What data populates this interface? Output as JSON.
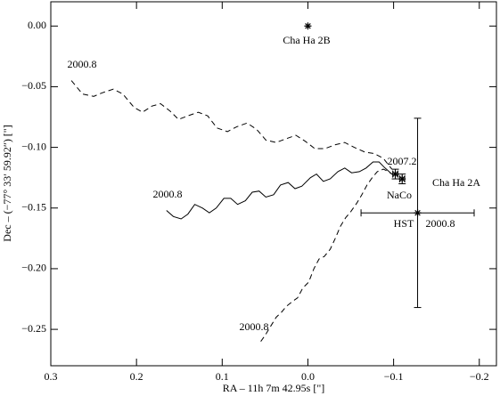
{
  "chart_data": {
    "type": "line",
    "x_label": "RA – 11h 7m 42.95s [\"]",
    "y_label": "Dec – (−77° 33′ 59.92″) [\"]",
    "xlim": [
      0.3,
      -0.22
    ],
    "ylim": [
      -0.28,
      0.02
    ],
    "xticks": [
      {
        "value": 0.3,
        "label": "0.3"
      },
      {
        "value": 0.2,
        "label": "0.2"
      },
      {
        "value": 0.1,
        "label": "0.1"
      },
      {
        "value": 0,
        "label": "0.0"
      },
      {
        "value": -0.1,
        "label": "−0.1"
      },
      {
        "value": -0.2,
        "label": "−0.2"
      }
    ],
    "yticks": [
      {
        "value": 0,
        "label": "0.00"
      },
      {
        "value": -0.05,
        "label": "−0.05"
      },
      {
        "value": -0.1,
        "label": "−0.10"
      },
      {
        "value": -0.15,
        "label": "−0.15"
      },
      {
        "value": -0.2,
        "label": "−0.20"
      },
      {
        "value": -0.25,
        "label": "−0.25"
      }
    ],
    "color": "#000000",
    "series": [
      {
        "dashed": true,
        "x": [
          0.276,
          0.263,
          0.25,
          0.24,
          0.227,
          0.216,
          0.203,
          0.193,
          0.182,
          0.172,
          0.161,
          0.151,
          0.14,
          0.128,
          0.117,
          0.106,
          0.094,
          0.083,
          0.071,
          0.06,
          0.049,
          0.037,
          0.026,
          0.014,
          0.003,
          -0.008,
          -0.02,
          -0.031,
          -0.043,
          -0.054,
          -0.067,
          -0.077,
          -0.088,
          -0.098
        ],
        "values": [
          -0.045,
          -0.056,
          -0.058,
          -0.055,
          -0.052,
          -0.056,
          -0.067,
          -0.071,
          -0.066,
          -0.064,
          -0.07,
          -0.077,
          -0.074,
          -0.071,
          -0.074,
          -0.084,
          -0.087,
          -0.083,
          -0.08,
          -0.085,
          -0.094,
          -0.096,
          -0.093,
          -0.09,
          -0.095,
          -0.101,
          -0.101,
          -0.098,
          -0.096,
          -0.1,
          -0.104,
          -0.105,
          -0.109,
          -0.118
        ]
      },
      {
        "dashed": false,
        "x": [
          0.165,
          0.157,
          0.148,
          0.14,
          0.132,
          0.123,
          0.115,
          0.107,
          0.098,
          0.09,
          0.082,
          0.073,
          0.065,
          0.057,
          0.049,
          0.04,
          0.032,
          0.023,
          0.015,
          0.007,
          -0.003,
          -0.01,
          -0.018,
          -0.026,
          -0.035,
          -0.043,
          -0.051,
          -0.06,
          -0.068,
          -0.076,
          -0.083,
          -0.09,
          -0.098
        ],
        "values": [
          -0.152,
          -0.157,
          -0.159,
          -0.155,
          -0.147,
          -0.15,
          -0.154,
          -0.15,
          -0.142,
          -0.142,
          -0.147,
          -0.144,
          -0.137,
          -0.136,
          -0.141,
          -0.139,
          -0.131,
          -0.129,
          -0.134,
          -0.132,
          -0.125,
          -0.122,
          -0.128,
          -0.126,
          -0.12,
          -0.117,
          -0.121,
          -0.12,
          -0.117,
          -0.112,
          -0.112,
          -0.117,
          -0.122
        ]
      },
      {
        "dashed": true,
        "x": [
          0.055,
          0.05,
          0.044,
          0.037,
          0.031,
          0.025,
          0.018,
          0.012,
          0.006,
          -0.001,
          -0.007,
          -0.013,
          -0.019,
          -0.026,
          -0.032,
          -0.038,
          -0.044,
          -0.05,
          -0.057,
          -0.063,
          -0.069,
          -0.075,
          -0.081,
          -0.088,
          -0.094,
          -0.098
        ],
        "values": [
          -0.26,
          -0.255,
          -0.248,
          -0.24,
          -0.236,
          -0.231,
          -0.227,
          -0.224,
          -0.216,
          -0.211,
          -0.2,
          -0.192,
          -0.19,
          -0.184,
          -0.175,
          -0.165,
          -0.158,
          -0.153,
          -0.146,
          -0.139,
          -0.131,
          -0.125,
          -0.12,
          -0.118,
          -0.12,
          -0.122
        ]
      }
    ],
    "points": [
      {
        "x": 0.0,
        "y": 0.0,
        "xerr": 0,
        "yerr": 0
      },
      {
        "x": -0.102,
        "y": -0.122,
        "xerr": 0.003,
        "yerr": 0.004
      },
      {
        "x": -0.11,
        "y": -0.126,
        "xerr": 0.003,
        "yerr": 0.004
      },
      {
        "x": -0.128,
        "y": -0.154,
        "xerr": 0.066,
        "yerr": 0.078
      }
    ],
    "annotations": [
      "Cha Ha 2B",
      "2000.8",
      "2000.8",
      "2000.8",
      "2007.2",
      "NaCo",
      "Cha Ha 2A",
      "HST",
      "2000.8"
    ]
  }
}
